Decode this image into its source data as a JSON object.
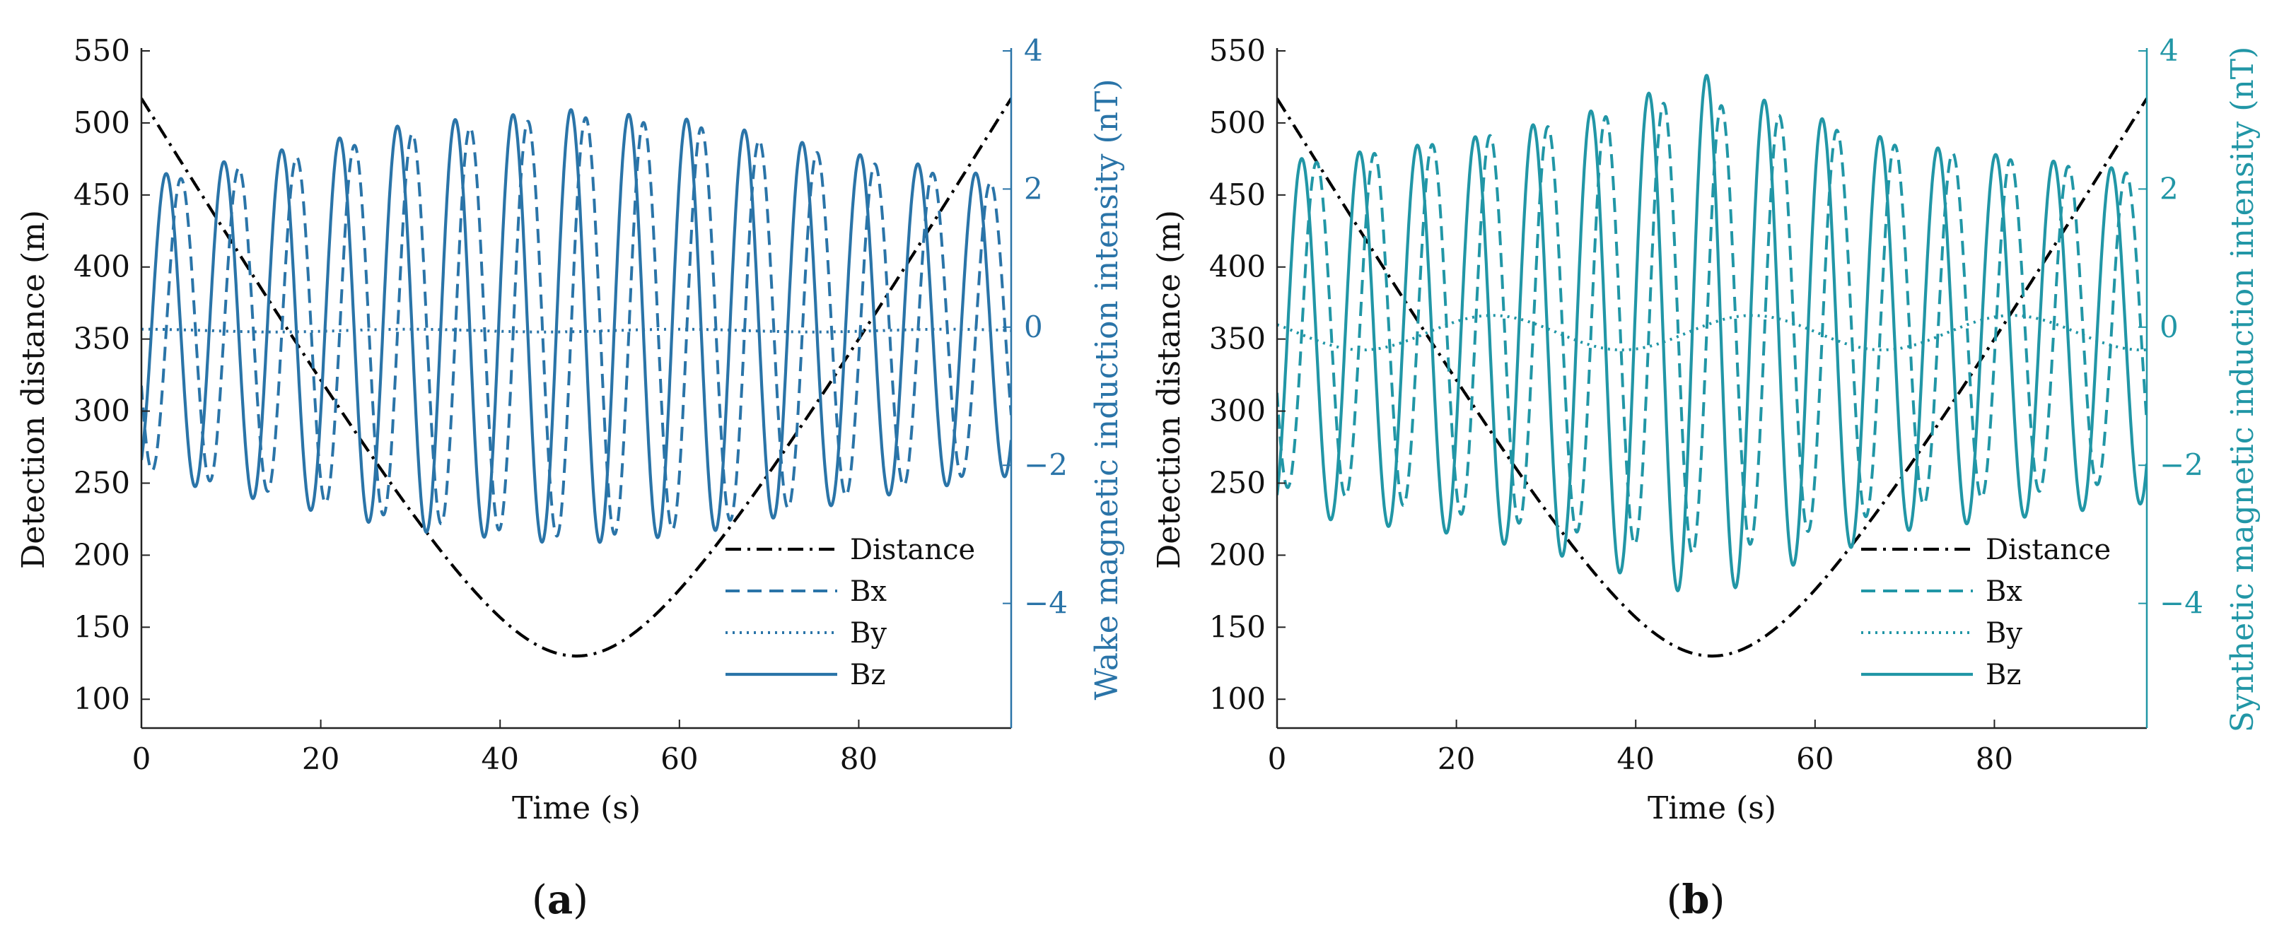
{
  "chart_data": [
    {
      "id": "a",
      "type": "line",
      "panel_label": {
        "open": "(",
        "letter": "a",
        "close": ")"
      },
      "xlabel": "Time (s)",
      "ylabel_left": "Detection distance (m)",
      "ylabel_right": "Wake magnetic induction intensity (nT)",
      "xlim": [
        0,
        97
      ],
      "ylim_left": [
        80,
        550
      ],
      "ylim_right": [
        -5.805,
        4.0
      ],
      "xticks": [
        0,
        20,
        40,
        60,
        80
      ],
      "yticks_left": [
        100,
        150,
        200,
        250,
        300,
        350,
        400,
        450,
        500,
        550
      ],
      "yticks_right": [
        -4,
        -2,
        0,
        2,
        4
      ],
      "right_axis_color": "#2a74a8",
      "legend_position": "lower-right",
      "series": [
        {
          "name": "Distance",
          "axis": "left",
          "style": "dashdot",
          "color": "#000000",
          "model": {
            "kind": "distance",
            "min": 130,
            "start": 517,
            "end": 517,
            "t_min": 48.5
          }
        },
        {
          "name": "Bx",
          "axis": "right",
          "style": "dashed",
          "color": "#2a74a8",
          "model": {
            "kind": "sine",
            "period": 6.45,
            "phase_peak": 4.4,
            "amp_t": [
              0,
              15,
              30,
              48,
              62,
              80,
              97
            ],
            "amp_v": [
              2.05,
              2.4,
              2.8,
              3.05,
              2.9,
              2.4,
              2.05
            ],
            "offset": 0
          }
        },
        {
          "name": "By",
          "axis": "right",
          "style": "dotted",
          "color": "#2a74a8",
          "model": {
            "kind": "sine",
            "period": 30,
            "phase_peak": 0,
            "amp_t": [
              0,
              97
            ],
            "amp_v": [
              0.02,
              0.02
            ],
            "offset": -0.05
          }
        },
        {
          "name": "Bz",
          "axis": "right",
          "style": "solid",
          "color": "#2a74a8",
          "model": {
            "kind": "sine",
            "period": 6.45,
            "phase_peak": 2.75,
            "amp_t": [
              0,
              15,
              30,
              48,
              62,
              80,
              97
            ],
            "amp_v": [
              2.15,
              2.55,
              2.95,
              3.15,
              3.0,
              2.5,
              2.15
            ],
            "offset": 0
          }
        }
      ]
    },
    {
      "id": "b",
      "type": "line",
      "panel_label": {
        "open": "(",
        "letter": "b",
        "close": ")"
      },
      "xlabel": "Time (s)",
      "ylabel_left": "Detection distance (m)",
      "ylabel_right": "Synthetic magnetic induction intensity (nT)",
      "xlim": [
        0,
        97
      ],
      "ylim_left": [
        80,
        550
      ],
      "ylim_right": [
        -5.805,
        4.0
      ],
      "xticks": [
        0,
        20,
        40,
        60,
        80
      ],
      "yticks_left": [
        100,
        150,
        200,
        250,
        300,
        350,
        400,
        450,
        500,
        550
      ],
      "yticks_right": [
        -4,
        -2,
        0,
        2,
        4
      ],
      "right_axis_color": "#2196a6",
      "legend_position": "lower-right",
      "series": [
        {
          "name": "Distance",
          "axis": "left",
          "style": "dashdot",
          "color": "#000000",
          "model": {
            "kind": "distance",
            "min": 130,
            "start": 517,
            "end": 517,
            "t_min": 48.5
          }
        },
        {
          "name": "Bx",
          "axis": "right",
          "style": "dashed",
          "color": "#2196a6",
          "model": {
            "kind": "sine",
            "period": 6.45,
            "phase_peak": 4.4,
            "amp_t": [
              0,
              20,
              35,
              45,
              55,
              70,
              97
            ],
            "amp_v": [
              2.3,
              2.7,
              3.0,
              3.3,
              3.1,
              2.6,
              2.2
            ],
            "offset": 0
          }
        },
        {
          "name": "By",
          "axis": "right",
          "style": "dotted",
          "color": "#2196a6",
          "model": {
            "kind": "sine",
            "period": 29,
            "phase_peak": 24,
            "amp_t": [
              0,
              97
            ],
            "amp_v": [
              0.25,
              0.25
            ],
            "offset": -0.08
          }
        },
        {
          "name": "Bz",
          "axis": "right",
          "style": "solid",
          "color": "#2196a6",
          "model": {
            "kind": "sine",
            "period": 6.45,
            "phase_peak": 2.75,
            "amp_t": [
              0,
              20,
              33,
              48,
              55,
              70,
              97
            ],
            "amp_v": [
              2.55,
              2.85,
              3.2,
              3.8,
              3.4,
              2.8,
              2.4
            ],
            "offset": -0.15
          }
        }
      ]
    }
  ]
}
